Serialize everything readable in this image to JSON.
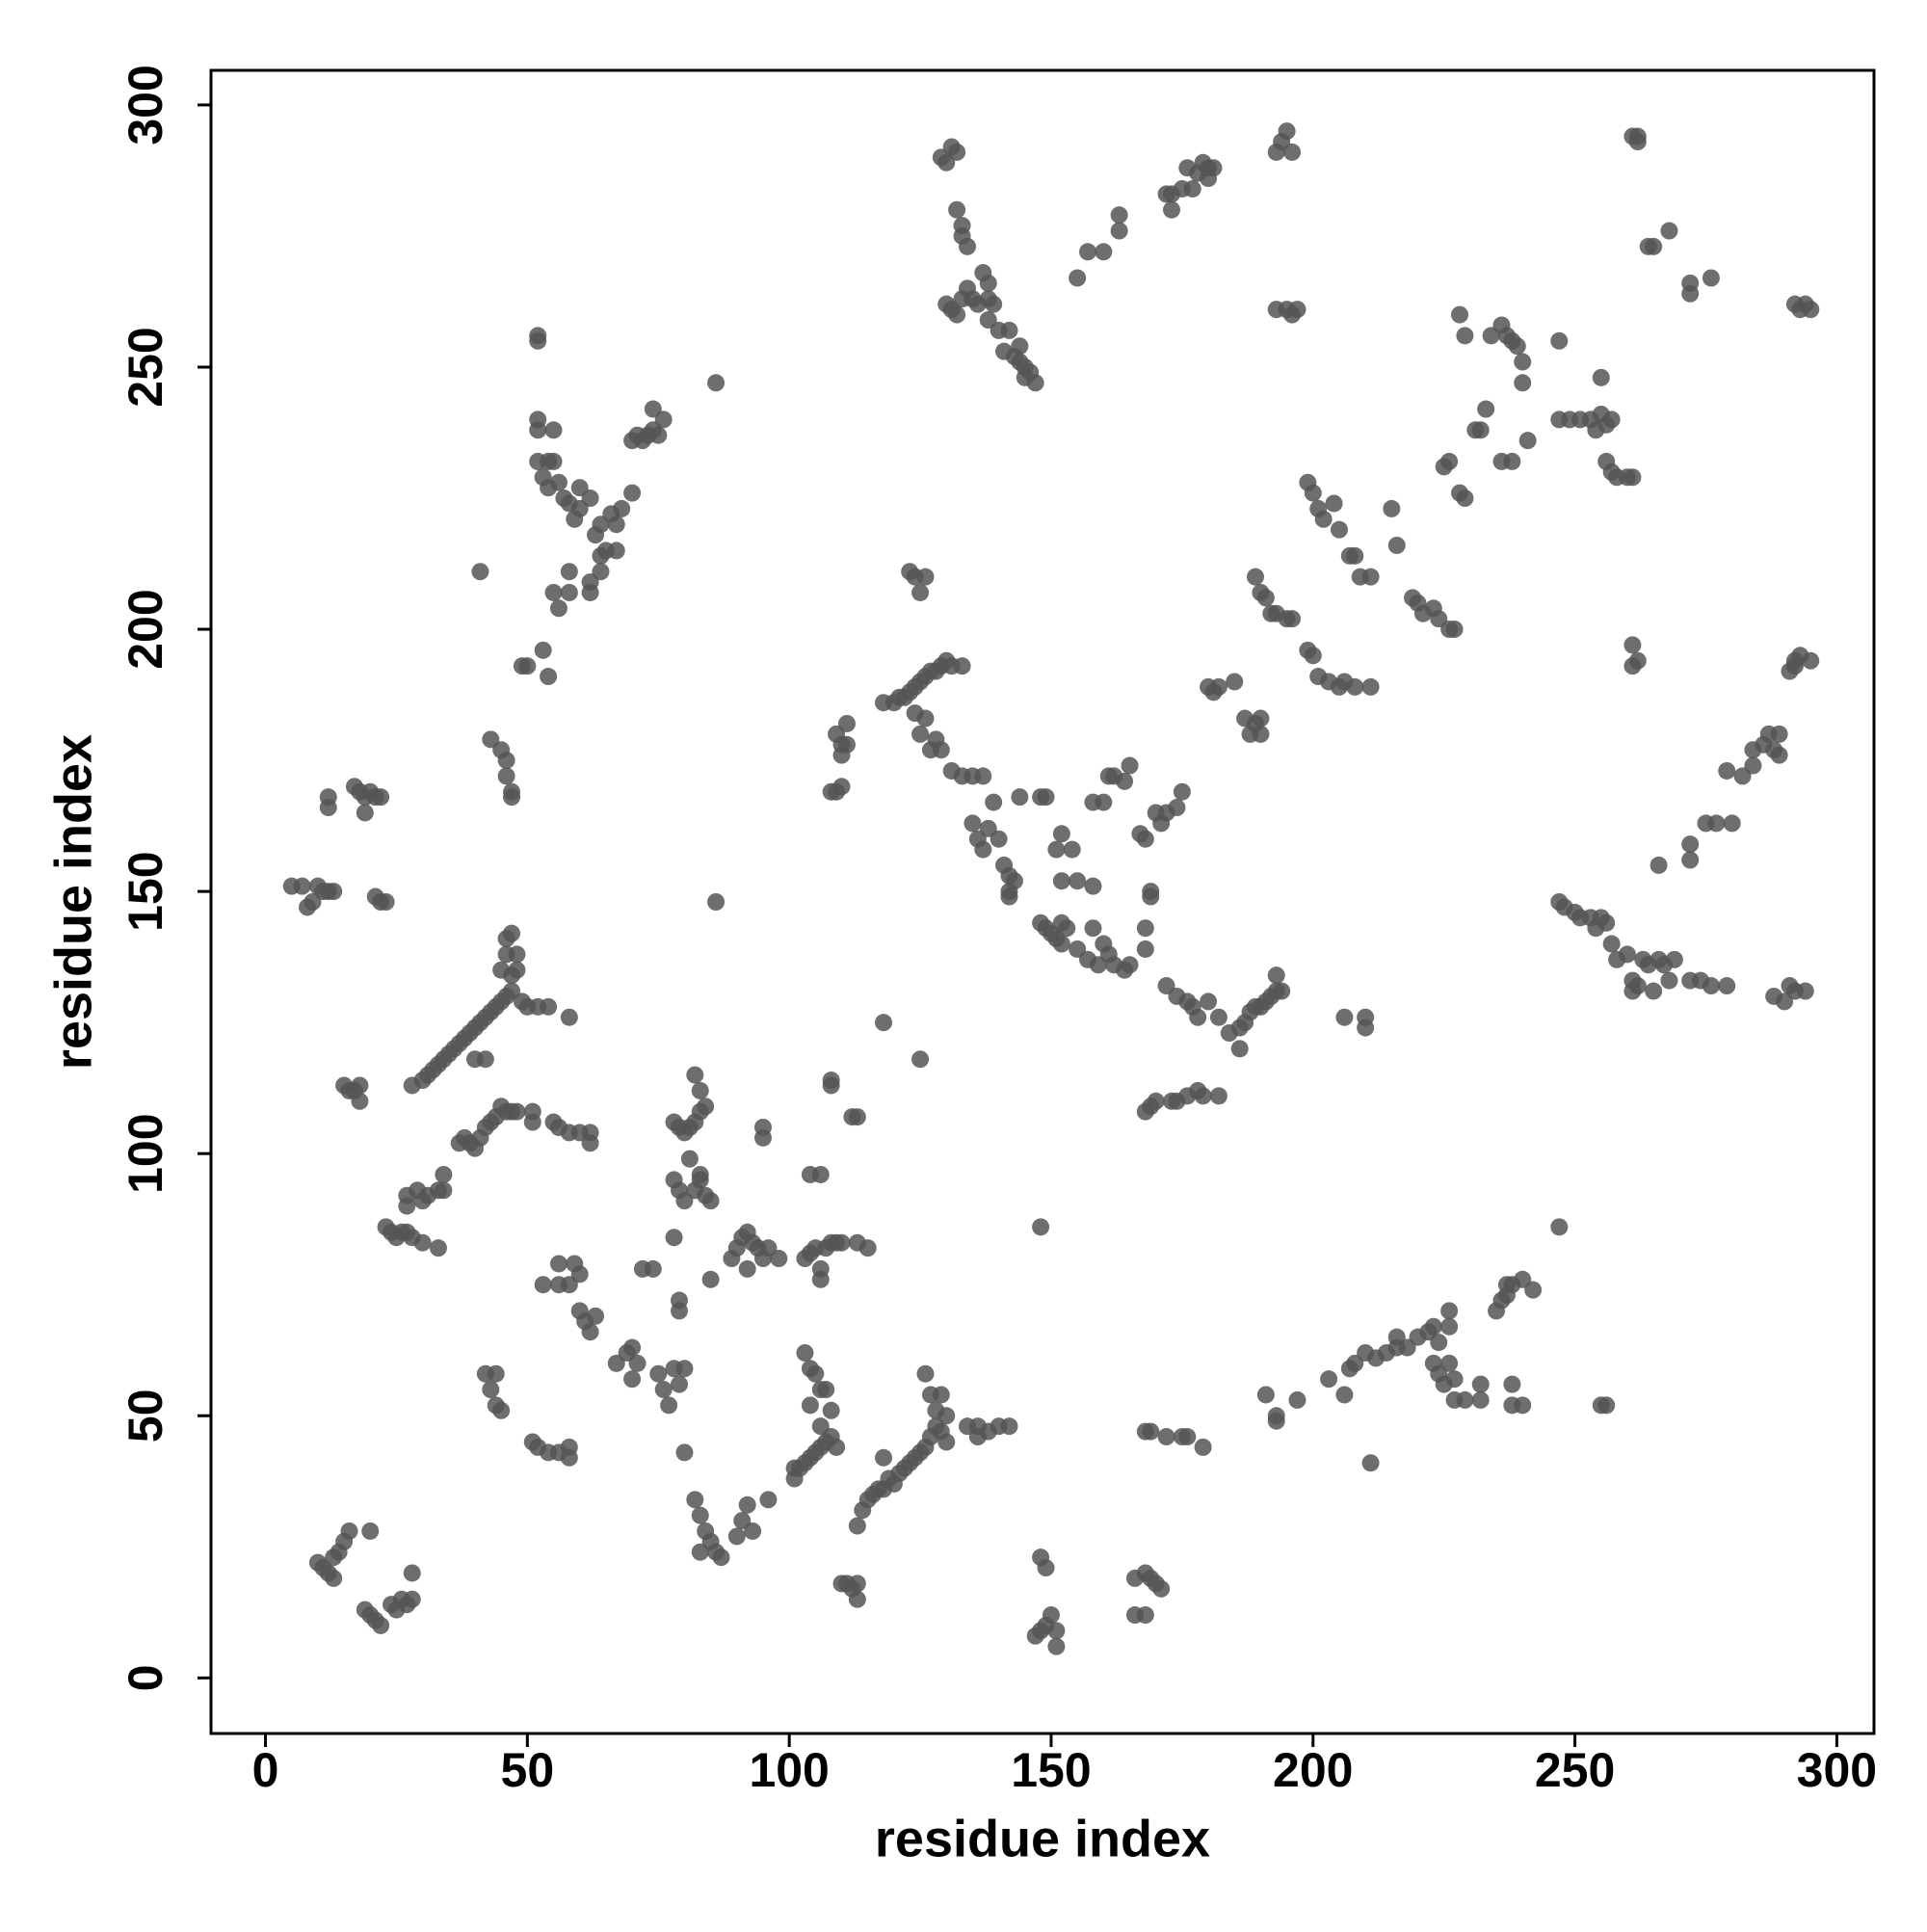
{
  "chart_data": {
    "type": "scatter",
    "x_label": "residue index",
    "y_label": "residue index",
    "color": "#555555",
    "xlim": [
      -10.4,
      307.1
    ],
    "ylim": [
      -10.6,
      306.6
    ],
    "xticks": [
      0,
      50,
      100,
      150,
      200,
      250,
      300
    ],
    "yticks": [
      0,
      50,
      100,
      150,
      200,
      250,
      300
    ],
    "x": [
      10,
      11,
      12,
      13,
      14,
      15,
      16,
      13,
      19,
      20,
      21,
      22,
      20,
      24,
      25,
      26,
      27,
      28,
      28,
      42,
      43,
      44,
      45,
      44,
      51,
      52,
      54,
      56,
      58,
      58,
      60,
      61,
      62,
      63,
      58,
      56,
      59,
      60,
      53,
      56,
      67,
      69,
      70,
      71,
      70,
      75,
      76,
      77,
      78,
      79,
      80,
      80,
      82,
      83,
      84,
      85,
      86,
      87,
      83,
      90,
      91,
      92,
      93,
      96,
      72,
      74,
      79,
      79,
      78,
      85,
      78,
      79,
      80,
      81,
      82,
      83,
      84,
      85,
      83,
      78,
      79,
      80,
      81,
      82,
      83,
      84,
      82,
      83,
      89,
      90,
      91,
      92,
      93,
      94,
      95,
      96,
      98,
      92,
      95,
      95,
      104,
      106,
      103,
      104,
      105,
      106,
      107,
      104,
      108,
      106,
      101,
      102,
      103,
      104,
      105,
      106,
      107,
      108,
      109,
      101,
      103,
      104,
      105,
      106,
      107,
      108,
      109,
      110,
      106,
      113,
      115,
      110,
      111,
      112,
      113,
      113,
      113,
      114,
      115,
      116,
      117,
      118,
      119,
      118,
      120,
      121,
      122,
      123,
      124,
      125,
      126,
      127,
      128,
      129,
      130,
      127,
      129,
      126,
      128,
      130,
      134,
      136,
      138,
      140,
      142,
      136,
      148,
      149,
      148,
      149,
      150,
      151,
      151,
      147,
      166,
      168,
      169,
      170,
      171,
      166,
      168,
      168,
      169,
      172,
      175,
      176,
      179,
      193,
      193,
      191,
      197,
      203,
      206,
      207,
      208,
      210,
      211,
      212,
      214,
      216,
      216,
      218,
      220,
      222,
      223,
      224,
      226,
      226,
      223,
      224,
      225,
      226,
      227,
      227,
      229,
      232,
      232,
      235,
      236,
      237,
      238,
      240,
      242,
      237,
      238,
      238,
      240,
      247,
      255,
      256,
      148,
      5,
      7,
      8,
      9,
      10,
      11,
      12,
      13,
      21,
      22,
      23,
      12,
      12,
      17,
      18,
      19,
      19,
      20,
      21,
      22,
      15,
      16,
      17,
      18,
      18,
      23,
      24,
      25,
      26,
      27,
      28,
      30,
      33,
      27,
      27,
      29,
      30,
      31,
      33,
      34,
      34,
      28,
      30,
      31,
      32,
      33,
      34,
      35,
      36,
      37,
      38,
      39,
      40,
      41,
      42,
      43,
      44,
      45,
      46,
      47,
      40,
      42,
      45,
      46,
      46,
      47,
      48,
      48,
      47,
      49,
      50,
      52,
      54,
      58,
      37,
      38,
      39,
      40,
      41,
      42,
      43,
      44,
      45,
      46,
      47,
      48,
      51,
      51,
      55,
      56,
      58,
      60,
      62,
      62,
      43,
      45,
      46,
      46,
      47,
      47,
      49,
      50,
      54,
      53,
      52,
      52,
      55,
      52,
      53,
      54,
      55,
      54,
      56,
      57,
      58,
      59,
      60,
      60,
      62,
      64,
      66,
      67,
      68,
      70,
      63,
      64,
      64,
      62,
      62,
      58,
      56,
      55,
      58,
      65,
      67,
      70,
      71,
      72,
      73,
      74,
      75,
      76,
      74,
      86,
      52,
      52,
      41,
      86,
      118,
      125,
      108,
      108,
      112,
      113,
      108,
      109,
      110,
      110,
      110,
      111,
      111,
      109,
      118,
      120,
      121,
      122,
      123,
      124,
      125,
      126,
      127,
      128,
      129,
      130,
      131,
      133,
      124,
      125,
      126,
      127,
      128,
      129,
      131,
      133,
      135,
      137,
      123,
      124,
      125,
      126,
      135,
      136,
      137,
      138,
      139,
      140,
      141,
      142,
      143,
      142,
      142,
      144,
      148,
      149,
      148,
      149,
      150,
      151,
      152,
      152,
      153,
      155,
      157,
      158,
      159,
      160,
      161,
      162,
      164,
      165,
      168,
      168,
      172,
      174,
      176,
      177,
      178,
      180,
      182,
      184,
      186,
      186,
      187,
      188,
      189,
      190,
      191,
      192,
      193,
      193,
      194,
      151,
      152,
      154,
      158,
      160,
      161,
      162,
      164,
      165,
      167,
      169,
      169,
      170,
      171,
      172,
      174,
      175,
      168,
      152,
      155,
      158,
      168,
      169,
      170,
      173,
      174,
      176,
      178,
      179,
      182,
      180,
      181,
      182,
      185,
      187,
      189,
      190,
      188,
      190,
      189,
      190,
      191,
      192,
      193,
      195,
      196,
      199,
      200,
      201,
      203,
      205,
      206,
      208,
      211,
      199,
      200,
      201,
      202,
      204,
      205,
      207,
      208,
      209,
      211,
      215,
      216,
      219,
      220,
      221,
      223,
      224,
      226,
      227,
      206,
      210,
      210,
      225,
      226,
      228,
      229,
      231,
      232,
      233,
      234,
      236,
      237,
      238,
      239,
      240,
      240,
      241,
      238,
      236,
      229,
      228,
      247,
      247,
      249,
      251,
      253,
      254,
      255,
      256,
      257,
      255,
      256,
      257,
      258,
      260,
      261,
      193,
      194,
      195,
      196,
      193,
      195,
      197,
      196,
      176,
      177,
      178,
      179,
      180,
      181,
      180,
      172,
      173,
      175,
      173,
      163,
      163,
      157,
      160,
      155,
      129,
      130,
      131,
      132,
      132,
      133,
      133,
      134,
      134,
      133,
      135,
      136,
      138,
      137,
      138,
      138,
      139,
      140,
      141,
      142,
      143,
      144,
      144,
      145,
      145,
      146,
      147,
      131,
      130,
      132,
      262,
      262,
      261,
      264,
      265,
      268,
      272,
      272,
      276,
      293,
      294,
      295,
      292,
      261,
      262,
      261,
      291,
      292,
      293,
      295,
      292,
      272,
      272,
      266,
      275,
      277,
      280,
      279,
      282,
      284,
      284,
      286,
      287,
      288,
      289,
      289,
      247,
      248,
      250,
      251,
      253,
      254,
      255,
      256,
      257,
      258,
      260,
      261,
      261,
      262,
      263,
      264,
      265,
      266,
      267,
      268,
      269,
      272,
      274,
      276,
      279,
      288,
      290,
      291,
      292,
      294
    ],
    "values": [
      22,
      21,
      20,
      19,
      24,
      26,
      28,
      23,
      13,
      12,
      11,
      10,
      28,
      14,
      13,
      15,
      14,
      20,
      15,
      58,
      55,
      52,
      51,
      58,
      45,
      44,
      43,
      43,
      42,
      44,
      70,
      68,
      66,
      69,
      75,
      79,
      79,
      77,
      75,
      75,
      60,
      62,
      57,
      60,
      63,
      58,
      55,
      52,
      59,
      56,
      59,
      43,
      34,
      31,
      28,
      26,
      24,
      23,
      24,
      27,
      30,
      33,
      28,
      34,
      78,
      78,
      72,
      70,
      84,
      76,
      95,
      93,
      91,
      99,
      93,
      95,
      92,
      91,
      96,
      106,
      105,
      104,
      105,
      106,
      108,
      109,
      115,
      112,
      80,
      82,
      84,
      85,
      83,
      82,
      80,
      82,
      80,
      78,
      105,
      103,
      96,
      96,
      62,
      59,
      58,
      55,
      55,
      52,
      51,
      48,
      38,
      40,
      41,
      42,
      43,
      44,
      45,
      46,
      44,
      40,
      80,
      81,
      82,
      78,
      82,
      83,
      83,
      83,
      76,
      83,
      82,
      18,
      18,
      17,
      15,
      18,
      29,
      32,
      34,
      35,
      36,
      36,
      38,
      42,
      37,
      39,
      40,
      41,
      42,
      43,
      44,
      46,
      48,
      47,
      50,
      54,
      54,
      58,
      51,
      45,
      48,
      48,
      47,
      48,
      48,
      46,
      23,
      21,
      9,
      10,
      12,
      9,
      6,
      8,
      19,
      20,
      19,
      18,
      17,
      12,
      12,
      47,
      47,
      46,
      46,
      46,
      44,
      50,
      49,
      54,
      53,
      57,
      54,
      59,
      60,
      62,
      41,
      61,
      62,
      63,
      65,
      63,
      65,
      66,
      67,
      64,
      70,
      67,
      60,
      58,
      56,
      60,
      57,
      53,
      53,
      56,
      53,
      70,
      72,
      73,
      75,
      76,
      74,
      75,
      56,
      52,
      52,
      86,
      52,
      52,
      86,
      151,
      151,
      147,
      148,
      151,
      150,
      150,
      150,
      149,
      148,
      148,
      168,
      166,
      170,
      169,
      168,
      165,
      169,
      168,
      168,
      113,
      112,
      112,
      110,
      113,
      86,
      85,
      84,
      85,
      85,
      84,
      83,
      82,
      92,
      90,
      93,
      91,
      92,
      93,
      96,
      93,
      113,
      114,
      115,
      116,
      117,
      118,
      119,
      120,
      121,
      122,
      123,
      124,
      125,
      126,
      127,
      128,
      129,
      130,
      131,
      118,
      118,
      135,
      138,
      141,
      142,
      138,
      135,
      134,
      129,
      128,
      128,
      128,
      126,
      102,
      103,
      102,
      101,
      103,
      105,
      106,
      107,
      109,
      108,
      108,
      108,
      108,
      106,
      106,
      105,
      104,
      104,
      104,
      102,
      179,
      177,
      175,
      172,
      169,
      168,
      193,
      193,
      191,
      196,
      238,
      240,
      238,
      232,
      229,
      232,
      232,
      227,
      228,
      225,
      224,
      221,
      223,
      227,
      225,
      220,
      222,
      220,
      223,
      226,
      218,
      214,
      211,
      209,
      207,
      207,
      204,
      207,
      211,
      215,
      215,
      236,
      237,
      236,
      237,
      238,
      237,
      240,
      242,
      247,
      256,
      255,
      211,
      148,
      125,
      118,
      113,
      114,
      107,
      107,
      169,
      169,
      170,
      176,
      178,
      182,
      178,
      180,
      186,
      186,
      187,
      187,
      188,
      189,
      190,
      191,
      192,
      192,
      193,
      194,
      193,
      193,
      184,
      180,
      183,
      177,
      179,
      177,
      173,
      172,
      172,
      172,
      211,
      210,
      207,
      210,
      163,
      160,
      158,
      162,
      167,
      160,
      155,
      153,
      152,
      150,
      149,
      168,
      168,
      168,
      144,
      143,
      142,
      141,
      144,
      140,
      143,
      139,
      137,
      143,
      136,
      140,
      138,
      136,
      135,
      136,
      143,
      139,
      132,
      130,
      129,
      128,
      126,
      129,
      126,
      123,
      120,
      124,
      125,
      127,
      128,
      128,
      129,
      130,
      131,
      134,
      131,
      158,
      161,
      158,
      167,
      167,
      172,
      172,
      171,
      174,
      161,
      150,
      149,
      165,
      163,
      165,
      166,
      169,
      160,
      152,
      152,
      151,
      108,
      109,
      110,
      110,
      110,
      111,
      112,
      111,
      111,
      189,
      188,
      189,
      190,
      183,
      182,
      183,
      180,
      180,
      210,
      207,
      206,
      203,
      203,
      202,
      202,
      196,
      195,
      191,
      190,
      189,
      190,
      189,
      189,
      228,
      226,
      223,
      221,
      224,
      219,
      214,
      214,
      210,
      210,
      223,
      216,
      206,
      205,
      203,
      204,
      202,
      200,
      200,
      126,
      126,
      124,
      231,
      232,
      226,
      225,
      238,
      238,
      242,
      256,
      258,
      256,
      255,
      254,
      251,
      247,
      236,
      232,
      232,
      256,
      260,
      255,
      240,
      240,
      240,
      240,
      238,
      241,
      239,
      240,
      248,
      232,
      230,
      229,
      229,
      229,
      291,
      293,
      295,
      291,
      261,
      261,
      261,
      260,
      288,
      284,
      287,
      289,
      288,
      288,
      286,
      283,
      283,
      284,
      280,
      279,
      276,
      272,
      272,
      267,
      290,
      289,
      292,
      291,
      280,
      277,
      275,
      273,
      265,
      263,
      263,
      262,
      263,
      268,
      266,
      259,
      262,
      257,
      253,
      257,
      252,
      254,
      251,
      250,
      248,
      249,
      247,
      261,
      262,
      260,
      293,
      294,
      294,
      273,
      273,
      276,
      264,
      266,
      267,
      261,
      262,
      261,
      262,
      197,
      194,
      193,
      192,
      194,
      195,
      194,
      193,
      159,
      156,
      155,
      163,
      163,
      163,
      173,
      172,
      174,
      177,
      178,
      180,
      177,
      180,
      176,
      148,
      147,
      146,
      145,
      145,
      143,
      145,
      144,
      140,
      137,
      138,
      133,
      131,
      132,
      137,
      136,
      131,
      137,
      136,
      133,
      137,
      133,
      133,
      132,
      132,
      130,
      129,
      132,
      131,
      131
    ]
  }
}
